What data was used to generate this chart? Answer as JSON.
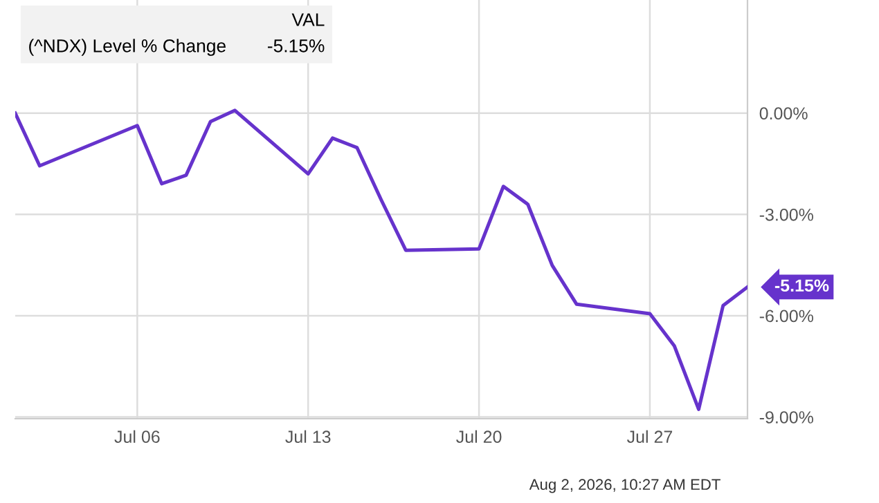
{
  "chart_data": {
    "type": "line",
    "legend_title": "VAL",
    "grid": true,
    "marker": "none",
    "line_style": "solid",
    "x": [
      "2026-07-01",
      "2026-07-02",
      "2026-07-06",
      "2026-07-07",
      "2026-07-08",
      "2026-07-09",
      "2026-07-10",
      "2026-07-13",
      "2026-07-14",
      "2026-07-15",
      "2026-07-16",
      "2026-07-17",
      "2026-07-20",
      "2026-07-21",
      "2026-07-22",
      "2026-07-23",
      "2026-07-24",
      "2026-07-27",
      "2026-07-28",
      "2026-07-29",
      "2026-07-30",
      "2026-07-31"
    ],
    "series": [
      {
        "name": "(^NDX) Level % Change",
        "color": "#6633cc",
        "values": [
          0.0,
          -1.56,
          -0.37,
          -2.09,
          -1.84,
          -0.25,
          0.08,
          -1.8,
          -0.74,
          -1.02,
          -2.58,
          -4.06,
          -4.02,
          -2.17,
          -2.7,
          -4.51,
          -5.66,
          -5.94,
          -6.89,
          -8.77,
          -5.7,
          -5.15
        ]
      }
    ],
    "xlim": [
      "2026-07-01",
      "2026-07-31"
    ],
    "xticks": [
      {
        "value": "2026-07-06",
        "label": "Jul 06"
      },
      {
        "value": "2026-07-13",
        "label": "Jul 13"
      },
      {
        "value": "2026-07-20",
        "label": "Jul 20"
      },
      {
        "value": "2026-07-27",
        "label": "Jul 27"
      }
    ],
    "ylim": [
      -9.05,
      3.35
    ],
    "yticks": [
      {
        "value": 0,
        "label": "0.00%"
      },
      {
        "value": -3,
        "label": "-3.00%"
      },
      {
        "value": -6,
        "label": "-6.00%"
      },
      {
        "value": -9,
        "label": "-9.00%"
      }
    ],
    "annotations": [
      "-5.15%",
      {
        "text": "-5.15%",
        "x": "2026-07-31",
        "y": -5.15
      },
      "Aug 2, 2026, 10:27 AM EDT"
    ]
  }
}
